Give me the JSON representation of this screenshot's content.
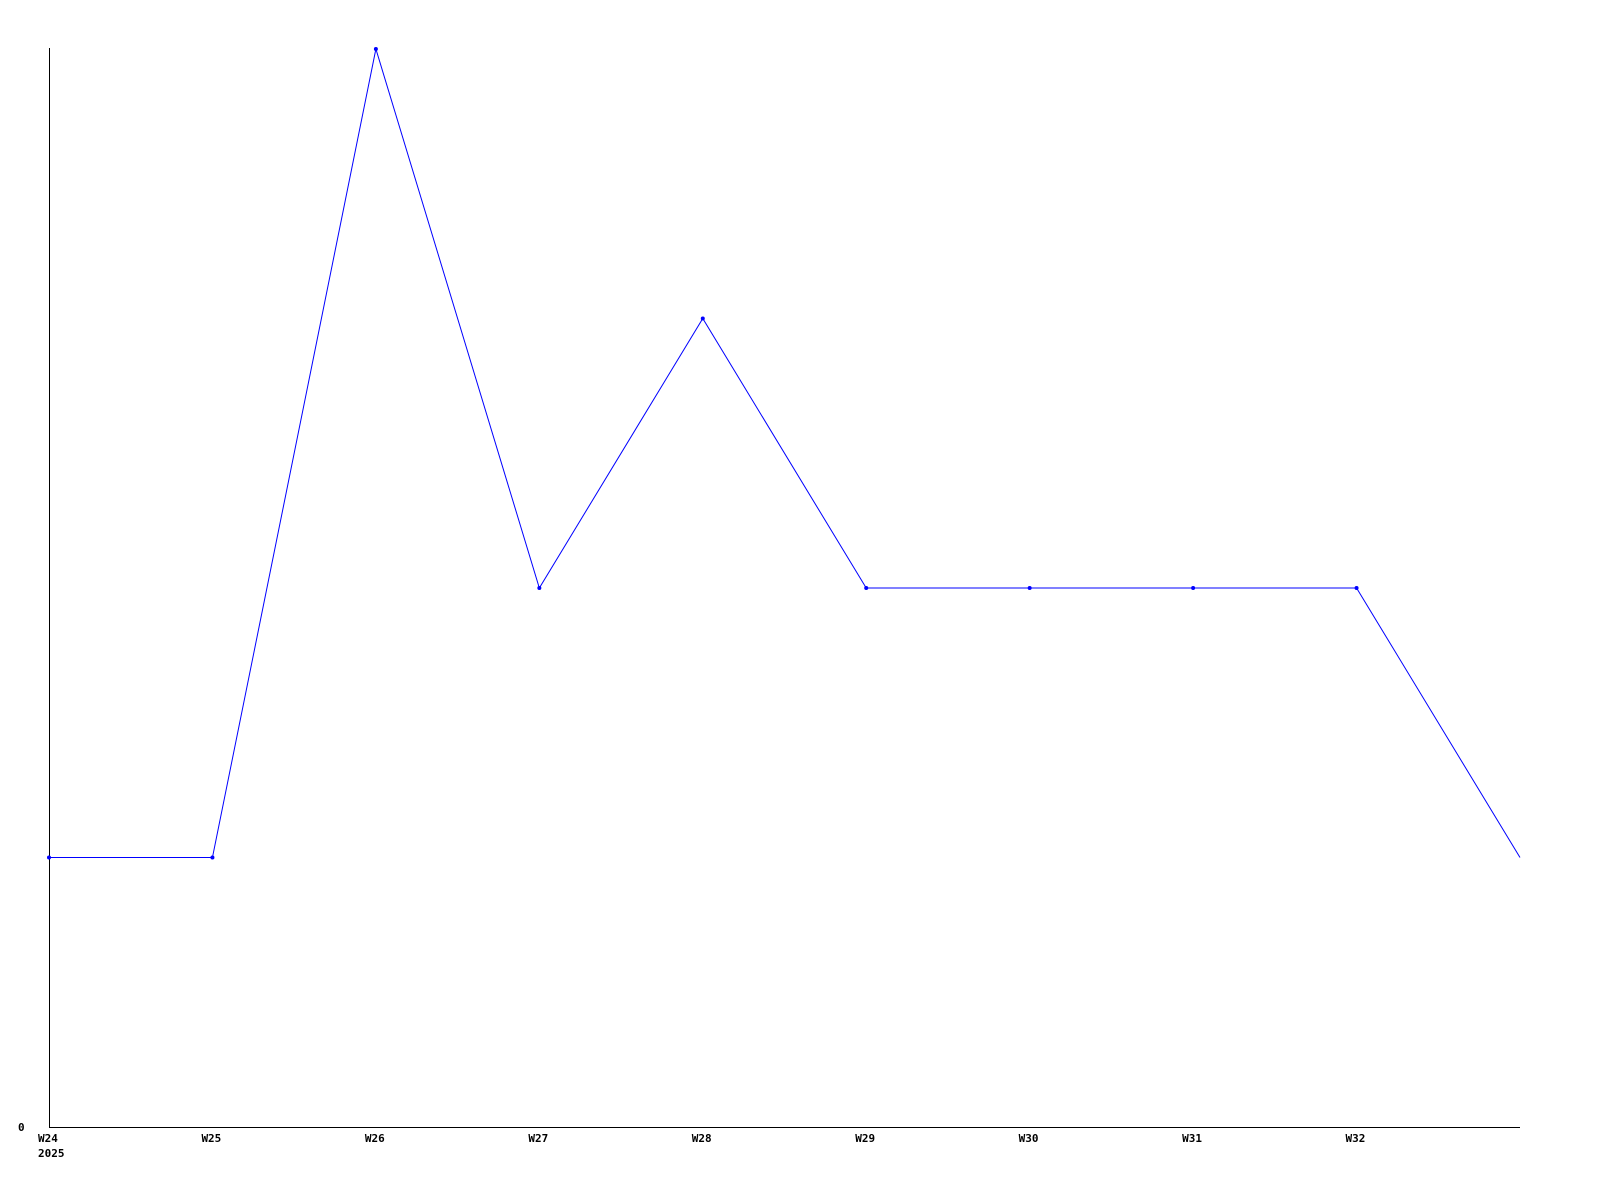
{
  "chart_data": {
    "type": "line",
    "title": "",
    "xlabel": "",
    "ylabel": "",
    "x": [
      24,
      25,
      26,
      27,
      28,
      29,
      30,
      31,
      32,
      33
    ],
    "x_tick_labels": [
      "W24",
      "W25",
      "W26",
      "W27",
      "W28",
      "W29",
      "W30",
      "W31",
      "W32"
    ],
    "x_sub_label": "2025",
    "y_tick_labels": [
      "0"
    ],
    "series": [
      {
        "values": [
          1,
          1,
          4,
          2,
          3,
          2,
          2,
          2,
          2,
          1
        ],
        "color": "#0000ff"
      }
    ],
    "ylim": [
      0,
      4
    ],
    "xlim": [
      24,
      33
    ],
    "grid": false,
    "legend": "none"
  }
}
